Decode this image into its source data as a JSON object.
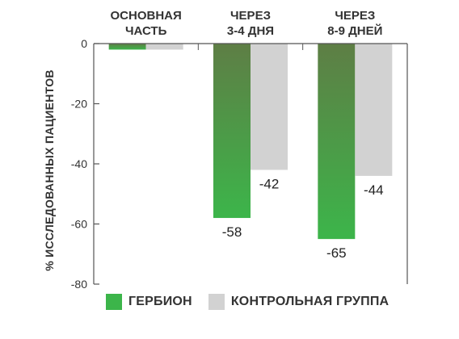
{
  "chart_data": {
    "type": "bar",
    "categories": [
      [
        "ОСНОВНАЯ",
        "ЧАСТЬ"
      ],
      [
        "ЧЕРЕЗ",
        "3-4 ДНЯ"
      ],
      [
        "ЧЕРЕЗ",
        "8-9 ДНЕЙ"
      ]
    ],
    "series": [
      {
        "name": "ГЕРБИОН",
        "values": [
          -2,
          -58,
          -65
        ],
        "color": "#3cb54a",
        "color_dark": "#5e7e45",
        "value_labels": [
          "",
          "-58",
          "-65"
        ]
      },
      {
        "name": "КОНТРОЛЬНАЯ ГРУППА",
        "values": [
          -2,
          -42,
          -44
        ],
        "color": "#d2d2d2",
        "value_labels": [
          "",
          "-42",
          "-44"
        ]
      }
    ],
    "ylabel": "% ИССЛЕДОВАННЫХ ПАЦИЕНТОВ",
    "ylim": [
      -80,
      0
    ],
    "yticks": [
      "0",
      "-20",
      "-40",
      "-60",
      "-80"
    ],
    "ytick_values": [
      0,
      -20,
      -40,
      -60,
      -80
    ],
    "legend_position": "bottom",
    "grid": false
  },
  "legend": {
    "items": [
      {
        "label": "ГЕРБИОН",
        "color": "#3cb54a"
      },
      {
        "label": "КОНТРОЛЬНАЯ ГРУППА",
        "color": "#d2d2d2"
      }
    ]
  }
}
